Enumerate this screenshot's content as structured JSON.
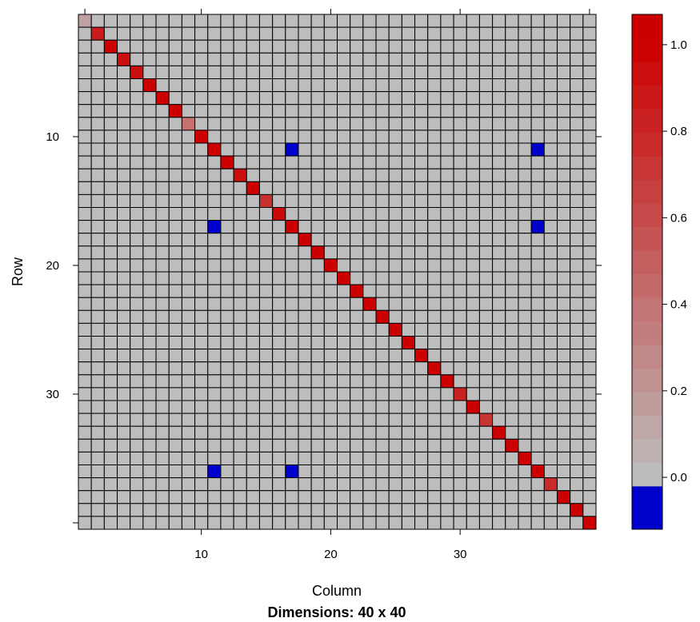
{
  "chart_data": {
    "type": "heatmap",
    "xlabel": "Column",
    "ylabel": "Row",
    "subtitle": "Dimensions: 40 x 40",
    "nrows": 40,
    "ncols": 40,
    "x_ticks": [
      10,
      20,
      30
    ],
    "y_ticks": [
      10,
      20,
      30
    ],
    "colorbar": {
      "range": [
        -0.12,
        1.07
      ],
      "ticks": [
        0.0,
        0.2,
        0.4,
        0.6,
        0.8,
        1.0
      ],
      "tick_labels": [
        "0.0",
        "0.2",
        "0.4",
        "0.6",
        "0.8",
        "1.0"
      ],
      "neg_color": "#0000cc",
      "low_color": "#bdbdbd",
      "high_color": "#cc0000"
    },
    "default_value": 0,
    "grid_color": "#000000",
    "diagonal": [
      {
        "index": 1,
        "value": 0.15
      },
      {
        "index": 2,
        "value": 0.85
      },
      {
        "index": 3,
        "value": 1.0
      },
      {
        "index": 4,
        "value": 0.92
      },
      {
        "index": 5,
        "value": 0.92
      },
      {
        "index": 6,
        "value": 1.0
      },
      {
        "index": 7,
        "value": 1.0
      },
      {
        "index": 8,
        "value": 1.0
      },
      {
        "index": 9,
        "value": 0.4
      },
      {
        "index": 10,
        "value": 1.0
      },
      {
        "index": 11,
        "value": 1.0
      },
      {
        "index": 12,
        "value": 1.0
      },
      {
        "index": 13,
        "value": 0.92
      },
      {
        "index": 14,
        "value": 1.0
      },
      {
        "index": 15,
        "value": 0.75
      },
      {
        "index": 16,
        "value": 0.95
      },
      {
        "index": 17,
        "value": 1.0
      },
      {
        "index": 18,
        "value": 1.0
      },
      {
        "index": 19,
        "value": 1.0
      },
      {
        "index": 20,
        "value": 1.0
      },
      {
        "index": 21,
        "value": 1.0
      },
      {
        "index": 22,
        "value": 1.0
      },
      {
        "index": 23,
        "value": 1.0
      },
      {
        "index": 24,
        "value": 1.0
      },
      {
        "index": 25,
        "value": 1.0
      },
      {
        "index": 26,
        "value": 1.0
      },
      {
        "index": 27,
        "value": 1.0
      },
      {
        "index": 28,
        "value": 1.0
      },
      {
        "index": 29,
        "value": 1.0
      },
      {
        "index": 30,
        "value": 0.82
      },
      {
        "index": 31,
        "value": 1.0
      },
      {
        "index": 32,
        "value": 0.72
      },
      {
        "index": 33,
        "value": 1.0
      },
      {
        "index": 34,
        "value": 1.0
      },
      {
        "index": 35,
        "value": 1.0
      },
      {
        "index": 36,
        "value": 1.0
      },
      {
        "index": 37,
        "value": 0.78
      },
      {
        "index": 38,
        "value": 1.0
      },
      {
        "index": 39,
        "value": 1.0
      },
      {
        "index": 40,
        "value": 1.0
      }
    ],
    "off_diagonal": [
      {
        "row": 11,
        "col": 17,
        "value": -0.1
      },
      {
        "row": 11,
        "col": 36,
        "value": -0.1
      },
      {
        "row": 17,
        "col": 11,
        "value": -0.1
      },
      {
        "row": 17,
        "col": 36,
        "value": -0.1
      },
      {
        "row": 36,
        "col": 11,
        "value": -0.1
      },
      {
        "row": 36,
        "col": 17,
        "value": -0.1
      }
    ]
  }
}
